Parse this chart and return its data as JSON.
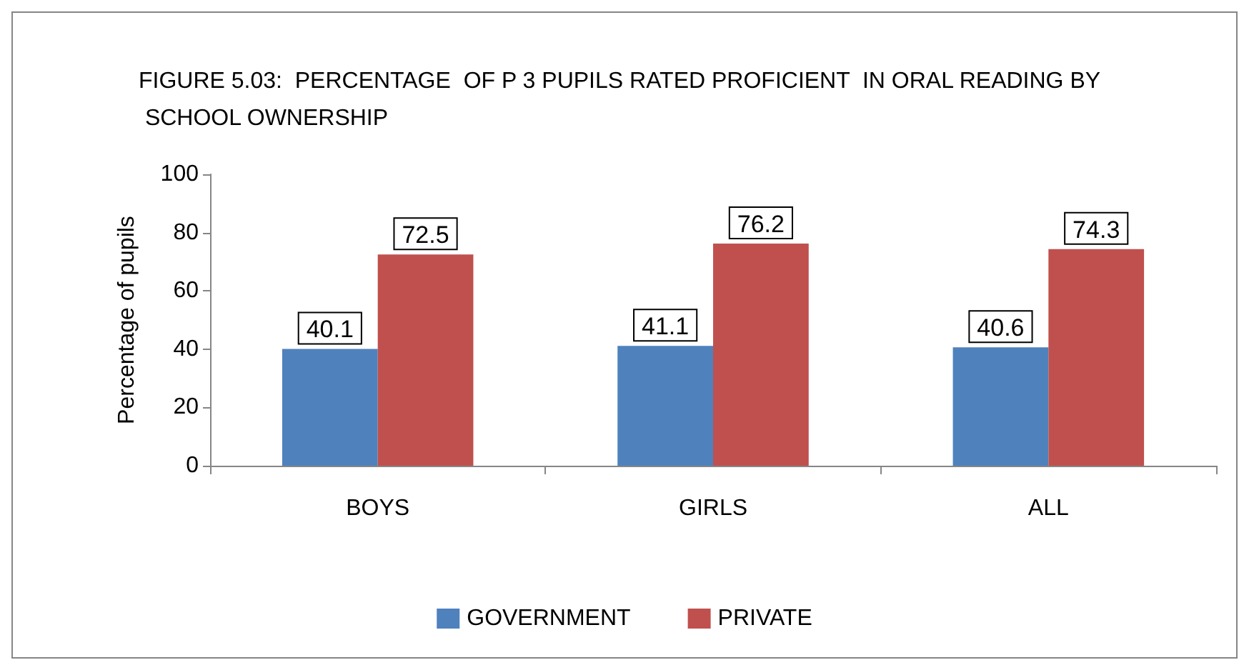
{
  "chart_data": {
    "type": "bar",
    "title": "FIGURE 5.03:  PERCENTAGE  OF P 3 PUPILS RATED PROFICIENT  IN ORAL READING BY SCHOOL OWNERSHIP",
    "ylabel": "Percentage of pupils",
    "categories": [
      "BOYS",
      "GIRLS",
      "ALL"
    ],
    "series": [
      {
        "name": "GOVERNMENT",
        "color": "#4f81bd",
        "values": [
          40.1,
          41.1,
          40.6
        ]
      },
      {
        "name": "PRIVATE",
        "color": "#c0504d",
        "values": [
          72.5,
          76.2,
          74.3
        ]
      }
    ],
    "ylim": [
      0,
      100
    ],
    "yticks": [
      0,
      20,
      40,
      60,
      80,
      100
    ],
    "data_labels": true,
    "grid": false,
    "legend": "bottom"
  }
}
